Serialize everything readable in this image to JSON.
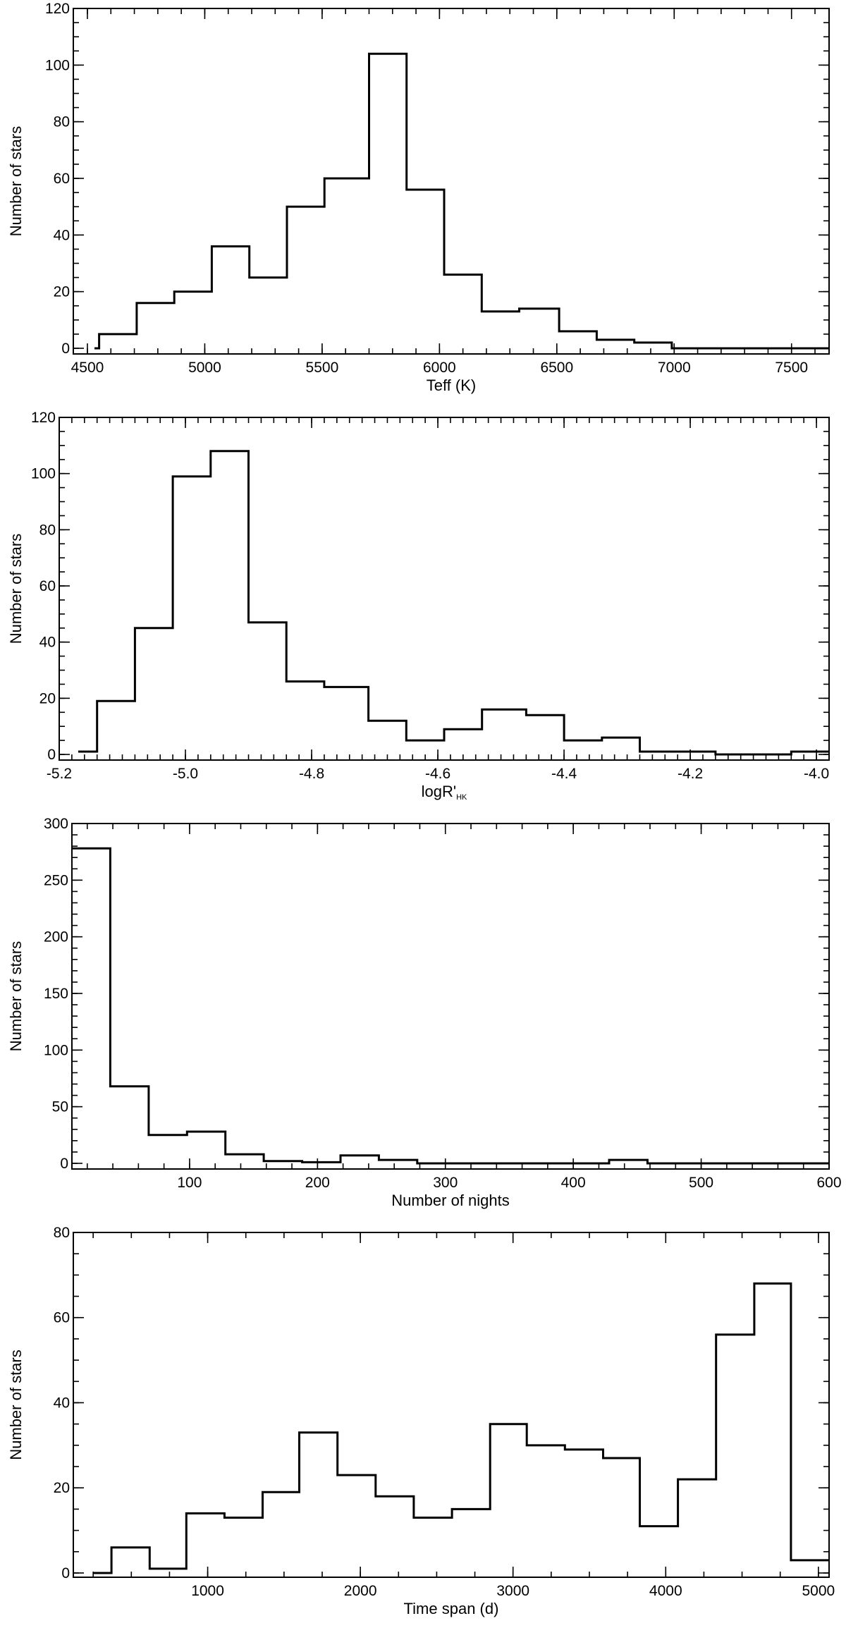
{
  "chart_data": [
    {
      "type": "histogram",
      "xlabel": "Teff (K)",
      "ylabel": "Number of stars",
      "xlim": [
        4440,
        7660
      ],
      "ylim": [
        -2,
        120
      ],
      "xticks": [
        4500,
        5000,
        5500,
        6000,
        6500,
        7000,
        7500
      ],
      "yticks": [
        0,
        20,
        40,
        60,
        80,
        100,
        120
      ],
      "x_minor_step": 100,
      "y_minor_step": 5,
      "x_edges": [
        4530,
        4550,
        4710,
        4870,
        5030,
        5190,
        5350,
        5510,
        5700,
        5860,
        6020,
        6180,
        6340,
        6510,
        6670,
        6830,
        6990,
        7150,
        7310,
        7470,
        7660
      ],
      "values": [
        0,
        5,
        16,
        20,
        36,
        25,
        50,
        60,
        104,
        56,
        26,
        13,
        14,
        6,
        3,
        2,
        0,
        0,
        0,
        0
      ]
    },
    {
      "type": "histogram",
      "xlabel": "logR'",
      "xlabel_subscript": "HK",
      "ylabel": "Number of stars",
      "xlim": [
        -5.2,
        -3.98
      ],
      "ylim": [
        -2,
        120
      ],
      "xticks": [
        -5.2,
        -5.0,
        -4.8,
        -4.6,
        -4.4,
        -4.2,
        -4.0
      ],
      "xtick_labels": [
        "-5.2",
        "-5.0",
        "-4.8",
        "-4.6",
        "-4.4",
        "-4.2",
        "-4.0"
      ],
      "yticks": [
        0,
        20,
        40,
        60,
        80,
        100,
        120
      ],
      "x_minor_step": 0.02,
      "y_minor_step": 5,
      "x_edges": [
        -5.17,
        -5.14,
        -5.08,
        -5.02,
        -4.96,
        -4.9,
        -4.84,
        -4.78,
        -4.71,
        -4.65,
        -4.59,
        -4.53,
        -4.46,
        -4.4,
        -4.34,
        -4.28,
        -4.22,
        -4.16,
        -4.1,
        -4.04,
        -3.98
      ],
      "values": [
        1,
        19,
        45,
        99,
        108,
        47,
        26,
        24,
        12,
        5,
        9,
        16,
        14,
        5,
        6,
        1,
        1,
        0,
        0,
        1
      ]
    },
    {
      "type": "histogram",
      "xlabel": "Number of nights",
      "ylabel": "Number of stars",
      "xlim": [
        8,
        600
      ],
      "ylim": [
        -5,
        300
      ],
      "xticks": [
        100,
        200,
        300,
        400,
        500,
        600
      ],
      "yticks": [
        0,
        50,
        100,
        150,
        200,
        250,
        300
      ],
      "x_minor_step": 20,
      "y_minor_step": 10,
      "x_edges": [
        8,
        38,
        68,
        98,
        128,
        158,
        188,
        218,
        248,
        278,
        308,
        338,
        368,
        398,
        428,
        458,
        488,
        518,
        548,
        578,
        600
      ],
      "values": [
        278,
        68,
        25,
        28,
        8,
        2,
        1,
        7,
        3,
        0,
        0,
        0,
        0,
        0,
        3,
        0,
        0,
        0,
        0,
        0
      ]
    },
    {
      "type": "histogram",
      "xlabel": "Time span (d)",
      "ylabel": "Number of stars",
      "xlim": [
        120,
        5070
      ],
      "ylim": [
        -1,
        80
      ],
      "xticks": [
        1000,
        2000,
        3000,
        4000,
        5000
      ],
      "yticks": [
        0,
        20,
        40,
        60,
        80
      ],
      "x_minor_step": 250,
      "y_minor_step": 5,
      "x_edges": [
        250,
        370,
        620,
        860,
        1110,
        1360,
        1600,
        1850,
        2100,
        2350,
        2600,
        2850,
        3090,
        3340,
        3590,
        3830,
        4080,
        4330,
        4580,
        4820,
        5070
      ],
      "values": [
        0,
        6,
        1,
        14,
        13,
        19,
        33,
        23,
        18,
        13,
        15,
        35,
        30,
        29,
        27,
        11,
        22,
        56,
        68,
        3
      ]
    }
  ]
}
